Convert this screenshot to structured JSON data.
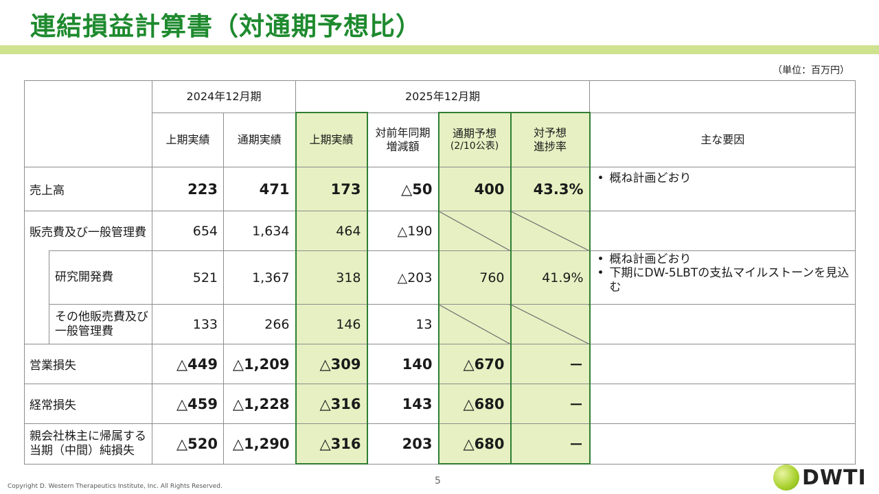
{
  "title": "連結損益計算書（対通期予想比）",
  "unit": "（単位：百万円）",
  "headers": {
    "year2024": "2024年12月期",
    "year2025": "2025年12月期",
    "h1_2024": "上期実績",
    "fy_2024": "通期実績",
    "h1_2025": "上期実績",
    "yoy_line1": "対前年同期",
    "yoy_line2": "増減額",
    "forecast_line1": "通期予想",
    "forecast_line2": "(2/10公表)",
    "progress_line1": "対予想",
    "progress_line2": "進捗率",
    "factors": "主な要因"
  },
  "rows": {
    "sales": {
      "label": "売上高",
      "values": [
        "223",
        "471",
        "173",
        "△50",
        "400",
        "43.3%"
      ],
      "reasons": [
        "概ね計画どおり"
      ]
    },
    "sga": {
      "label": "販売費及び一般管理費",
      "values": [
        "654",
        "1,634",
        "464",
        "△190"
      ]
    },
    "rnd": {
      "label": "研究開発費",
      "values": [
        "521",
        "1,367",
        "318",
        "△203",
        "760",
        "41.9%"
      ],
      "reasons": [
        "概ね計画どおり",
        "下期にDW-5LBTの支払マイルストーンを見込む"
      ]
    },
    "other_sga": {
      "label_line1": "その他販売費及び",
      "label_line2": "一般管理費",
      "values": [
        "133",
        "266",
        "146",
        "13"
      ]
    },
    "op_loss": {
      "label": "営業損失",
      "values": [
        "△449",
        "△1,209",
        "△309",
        "140",
        "△670",
        "－"
      ]
    },
    "ord_loss": {
      "label": "経常損失",
      "values": [
        "△459",
        "△1,228",
        "△316",
        "143",
        "△680",
        "－"
      ]
    },
    "net_loss": {
      "label_line1": "親会社株主に帰属する",
      "label_line2": "当期（中間）純損失",
      "values": [
        "△520",
        "△1,290",
        "△316",
        "203",
        "△680",
        "－"
      ]
    }
  },
  "page_number": "5",
  "copyright": "Copyright D. Western Therapeutics Institute, Inc. All Rights Reserved.",
  "logo_text": "DWTI",
  "colors": {
    "title": "#1e8a2e",
    "band": "#cfe28f",
    "highlight": "#e6f0c2",
    "highlight_border": "#2e7d32"
  }
}
